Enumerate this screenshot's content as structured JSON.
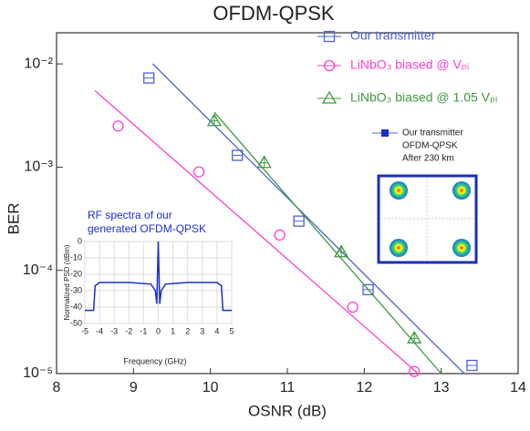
{
  "chart_data": [
    {
      "type": "scatter",
      "title": "OFDM-QPSK",
      "xlabel": "OSNR (dB)",
      "ylabel": "BER",
      "log_y": true,
      "xlim": [
        8,
        14
      ],
      "xticks": [
        8,
        9,
        10,
        11,
        12,
        13,
        14
      ],
      "ylim": [
        1e-05,
        0.02
      ],
      "yticks": [
        {
          "value": 1e-05,
          "label": "10⁻⁵"
        },
        {
          "value": 0.0001,
          "label": "10⁻⁴"
        },
        {
          "value": 0.001,
          "label": "10⁻³"
        },
        {
          "value": 0.01,
          "label": "10⁻²"
        }
      ],
      "legend": "upper right",
      "series": [
        {
          "name": "Our transmitter",
          "color": "#4a63d6",
          "marker": "square",
          "x": [
            9.2,
            10.35,
            11.15,
            12.05,
            13.4
          ],
          "values": [
            0.0073,
            0.0013,
            0.0003,
            6.5e-05,
            1.2e-05
          ],
          "fit": {
            "x": [
              9.25,
              13.3
            ],
            "values": [
              0.01,
              1e-05
            ]
          }
        },
        {
          "name": "LiNbO₃ biased @ Vₚᵢ",
          "color": "#ff3fd0",
          "marker": "circle",
          "x": [
            8.8,
            9.85,
            10.9,
            11.85,
            12.65
          ],
          "values": [
            0.0025,
            0.0009,
            0.00022,
            4.4e-05,
            1.05e-05
          ],
          "fit": {
            "x": [
              8.5,
              12.7
            ],
            "values": [
              0.0055,
              1e-05
            ]
          }
        },
        {
          "name": "LiNbO₃ biased @ 1.05 Vₚᵢ",
          "color": "#3d9a3d",
          "marker": "triangle",
          "x": [
            10.05,
            10.7,
            11.7,
            12.65
          ],
          "values": [
            0.0028,
            0.0011,
            0.00015,
            2.2e-05
          ],
          "fit": {
            "x": [
              10.05,
              13.0
            ],
            "values": [
              0.0034,
              1e-05
            ]
          }
        }
      ],
      "annotations": [
        "Our transmitter",
        "OFDM-QPSK",
        "After 230 km"
      ]
    },
    {
      "type": "line",
      "title": [
        "RF spectra of our",
        "generated OFDM-QPSK"
      ],
      "xlabel": "Frequency (GHz)",
      "ylabel": "Normalized PSD (dBm)",
      "xlim": [
        -5,
        5
      ],
      "xticks": [
        -5,
        -4,
        -3,
        -2,
        -1,
        0,
        1,
        2,
        3,
        4,
        5
      ],
      "ylim": [
        -50,
        0
      ],
      "yticks": [
        -50,
        -40,
        -30,
        -20,
        -10,
        0
      ],
      "series": [
        {
          "color": "#1a2fd0",
          "x": [
            -5,
            -4.4,
            -4.3,
            -4,
            -2,
            -0.5,
            -0.2,
            -0.1,
            0,
            0.1,
            0.2,
            0.5,
            2,
            4,
            4.3,
            4.4,
            5
          ],
          "values": [
            -42,
            -42,
            -27,
            -25,
            -25,
            -26,
            -30,
            -38,
            0,
            -38,
            -30,
            -26,
            -25,
            -25,
            -27,
            -42,
            -42
          ]
        }
      ]
    }
  ]
}
